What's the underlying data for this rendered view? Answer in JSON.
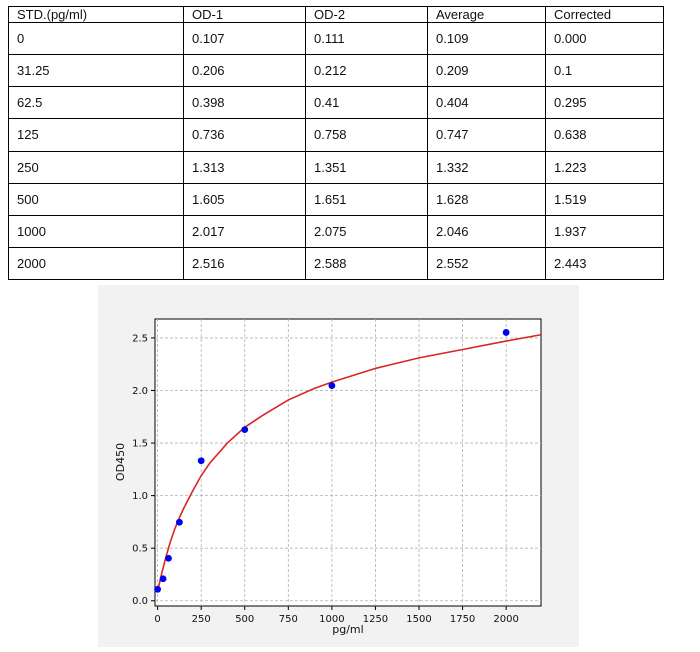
{
  "table": {
    "headers": [
      "STD.(pg/ml)",
      "OD-1",
      "OD-2",
      "Average",
      "Corrected"
    ],
    "rows": [
      [
        "0",
        "0.107",
        "0.111",
        "0.109",
        "0.000"
      ],
      [
        "31.25",
        "0.206",
        "0.212",
        "0.209",
        "0.1"
      ],
      [
        "62.5",
        "0.398",
        "0.41",
        "0.404",
        "0.295"
      ],
      [
        "125",
        "0.736",
        "0.758",
        "0.747",
        "0.638"
      ],
      [
        "250",
        "1.313",
        "1.351",
        "1.332",
        "1.223"
      ],
      [
        "500",
        "1.605",
        "1.651",
        "1.628",
        "1.519"
      ],
      [
        "1000",
        "2.017",
        "2.075",
        "2.046",
        "1.937"
      ],
      [
        "2000",
        "2.516",
        "2.588",
        "2.552",
        "2.443"
      ]
    ]
  },
  "chart_data": {
    "type": "scatter",
    "xlabel": "pg/ml",
    "ylabel": "OD450",
    "xlim": [
      -15,
      2200
    ],
    "ylim": [
      -0.05,
      2.68
    ],
    "xticks": [
      0,
      250,
      500,
      750,
      1000,
      1250,
      1500,
      1750,
      2000
    ],
    "yticks": [
      0.0,
      0.5,
      1.0,
      1.5,
      2.0,
      2.5
    ],
    "xtick_labels": [
      "0",
      "250",
      "500",
      "750",
      "1000",
      "1250",
      "1500",
      "1750",
      "2000"
    ],
    "ytick_labels": [
      "0.0",
      "0.5",
      "1.0",
      "1.5",
      "2.0",
      "2.5"
    ],
    "grid": true,
    "points": {
      "x": [
        0,
        31.25,
        62.5,
        125,
        250,
        500,
        1000,
        2000
      ],
      "y": [
        0.109,
        0.209,
        0.404,
        0.747,
        1.332,
        1.628,
        2.046,
        2.552
      ],
      "color": "#0000ee"
    },
    "fit": {
      "x": [
        0,
        25,
        50,
        75,
        100,
        125,
        150,
        200,
        250,
        300,
        400,
        500,
        600,
        750,
        900,
        1000,
        1250,
        1500,
        1750,
        2000,
        2200
      ],
      "y": [
        0.09,
        0.27,
        0.43,
        0.57,
        0.69,
        0.79,
        0.88,
        1.04,
        1.19,
        1.31,
        1.5,
        1.65,
        1.76,
        1.91,
        2.02,
        2.08,
        2.21,
        2.31,
        2.39,
        2.47,
        2.53
      ],
      "color": "#d62728"
    }
  }
}
